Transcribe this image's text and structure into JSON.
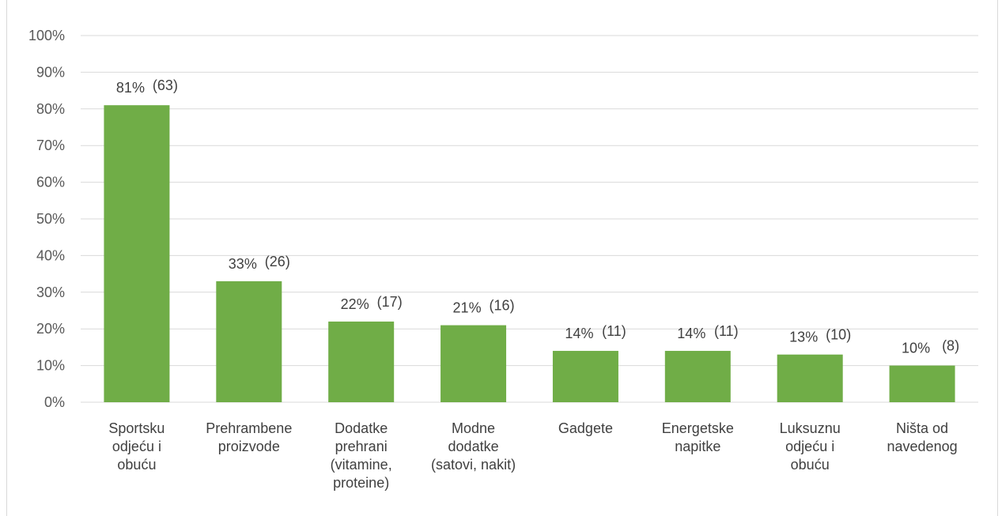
{
  "chart_data": {
    "type": "bar",
    "categories": [
      [
        "Sportsku",
        "odjeću i",
        "obuću"
      ],
      [
        "Prehrambene",
        "proizvode"
      ],
      [
        "Dodatke",
        "prehrani",
        "(vitamine,",
        "proteine)"
      ],
      [
        "Modne",
        "dodatke",
        "(satovi, nakit)"
      ],
      [
        "Gadgete"
      ],
      [
        "Energetske",
        "napitke"
      ],
      [
        "Luksuznu",
        "odjeću i",
        "obuću"
      ],
      [
        "Ništa od",
        "navedenog"
      ]
    ],
    "values": [
      81,
      33,
      22,
      21,
      14,
      14,
      13,
      10
    ],
    "value_labels": [
      "81%",
      "33%",
      "22%",
      "21%",
      "14%",
      "14%",
      "13%",
      "10%"
    ],
    "count_labels": [
      "(63)",
      "(26)",
      "(17)",
      "(16)",
      "(11)",
      "(11)",
      "(10)",
      "(8)"
    ],
    "y_ticks": [
      "0%",
      "10%",
      "20%",
      "30%",
      "40%",
      "50%",
      "60%",
      "70%",
      "80%",
      "90%",
      "100%"
    ],
    "ylim": [
      0,
      100
    ],
    "grid": true,
    "bar_color": "#70ad47",
    "grid_color": "#d9d9d9",
    "title": "",
    "xlabel": "",
    "ylabel": ""
  }
}
